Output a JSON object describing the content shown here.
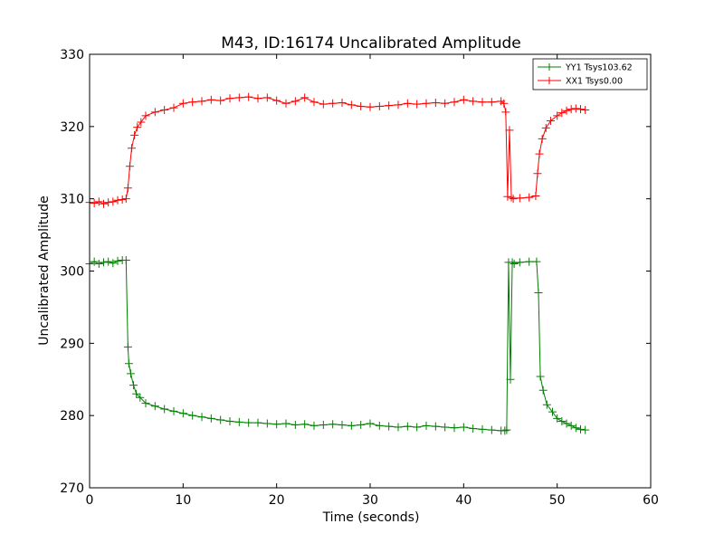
{
  "chart_data": {
    "type": "line",
    "title": "M43, ID:16174 Uncalibrated Amplitude",
    "xlabel": "Time (seconds)",
    "ylabel": "Uncalibrated Amplitude",
    "xlim": [
      0,
      60
    ],
    "ylim": [
      270,
      330
    ],
    "xticks": [
      "0",
      "10",
      "20",
      "30",
      "40",
      "50",
      "60"
    ],
    "yticks": [
      "270",
      "280",
      "290",
      "300",
      "310",
      "320",
      "330"
    ],
    "grid": false,
    "legend_position": "top-right",
    "marker": "+",
    "series": [
      {
        "name": "YY1 Tsys103.62",
        "color": "#008000",
        "x": [
          0,
          0.5,
          1,
          1.5,
          2,
          2.5,
          3,
          3.5,
          3.9,
          4.1,
          4.2,
          4.4,
          4.7,
          5.0,
          5.4,
          6,
          7,
          8,
          9,
          10,
          11,
          12,
          13,
          14,
          15,
          16,
          17,
          18,
          19,
          20,
          21,
          22,
          23,
          24,
          25,
          26,
          27,
          28,
          29,
          30,
          31,
          32,
          33,
          34,
          35,
          36,
          37,
          38,
          39,
          40,
          41,
          42,
          43,
          44,
          44.4,
          44.6,
          44.8,
          45.0,
          45.2,
          45.4,
          46,
          47,
          47.8,
          48.0,
          48.2,
          48.5,
          48.9,
          49.5,
          50,
          50.5,
          51,
          51.5,
          52,
          52.5,
          53
        ],
        "values": [
          301.0,
          301.3,
          301.0,
          301.2,
          301.3,
          301.1,
          301.4,
          301.5,
          301.5,
          289.5,
          287.2,
          285.8,
          284.2,
          283.0,
          282.5,
          281.7,
          281.3,
          280.9,
          280.6,
          280.3,
          280.0,
          279.8,
          279.6,
          279.4,
          279.2,
          279.1,
          279.0,
          279.0,
          278.9,
          278.8,
          278.9,
          278.7,
          278.8,
          278.6,
          278.7,
          278.8,
          278.7,
          278.6,
          278.7,
          278.9,
          278.6,
          278.5,
          278.4,
          278.5,
          278.4,
          278.6,
          278.5,
          278.4,
          278.3,
          278.4,
          278.2,
          278.1,
          278.0,
          277.9,
          277.9,
          278.0,
          301.2,
          285.0,
          301.2,
          301.0,
          301.2,
          301.3,
          301.3,
          297.0,
          285.4,
          283.5,
          281.5,
          280.5,
          279.6,
          279.2,
          278.9,
          278.6,
          278.3,
          278.1,
          278.0
        ]
      },
      {
        "name": "XX1 Tsys0.00",
        "color": "#ff0000",
        "x": [
          0,
          0.5,
          1,
          1.5,
          2,
          2.5,
          3,
          3.5,
          3.9,
          4.1,
          4.3,
          4.5,
          4.8,
          5.1,
          5.5,
          6,
          7,
          8,
          9,
          10,
          11,
          12,
          13,
          14,
          15,
          16,
          17,
          18,
          19,
          20,
          21,
          22,
          23,
          24,
          25,
          26,
          27,
          28,
          29,
          30,
          31,
          32,
          33,
          34,
          35,
          36,
          37,
          38,
          39,
          40,
          41,
          42,
          43,
          44,
          44.3,
          44.5,
          44.7,
          44.9,
          45.1,
          45.3,
          46,
          47,
          47.7,
          47.9,
          48.1,
          48.4,
          48.8,
          49.3,
          50,
          50.5,
          51,
          51.5,
          52,
          52.5,
          53
        ],
        "values": [
          309.5,
          309.4,
          309.6,
          309.3,
          309.5,
          309.6,
          309.8,
          309.9,
          310.0,
          311.5,
          314.5,
          317.0,
          318.8,
          319.9,
          320.6,
          321.5,
          322.0,
          322.3,
          322.6,
          323.2,
          323.4,
          323.5,
          323.7,
          323.6,
          323.9,
          324.0,
          324.1,
          323.9,
          324.0,
          323.6,
          323.2,
          323.5,
          324.0,
          323.4,
          323.1,
          323.2,
          323.3,
          323.0,
          322.8,
          322.7,
          322.8,
          322.9,
          323.0,
          323.2,
          323.1,
          323.2,
          323.3,
          323.2,
          323.4,
          323.7,
          323.5,
          323.4,
          323.4,
          323.5,
          323.2,
          322.0,
          310.3,
          319.5,
          310.2,
          310.0,
          310.1,
          310.2,
          310.4,
          313.5,
          316.2,
          318.3,
          319.8,
          320.8,
          321.5,
          321.9,
          322.2,
          322.4,
          322.5,
          322.4,
          322.3
        ]
      }
    ]
  }
}
